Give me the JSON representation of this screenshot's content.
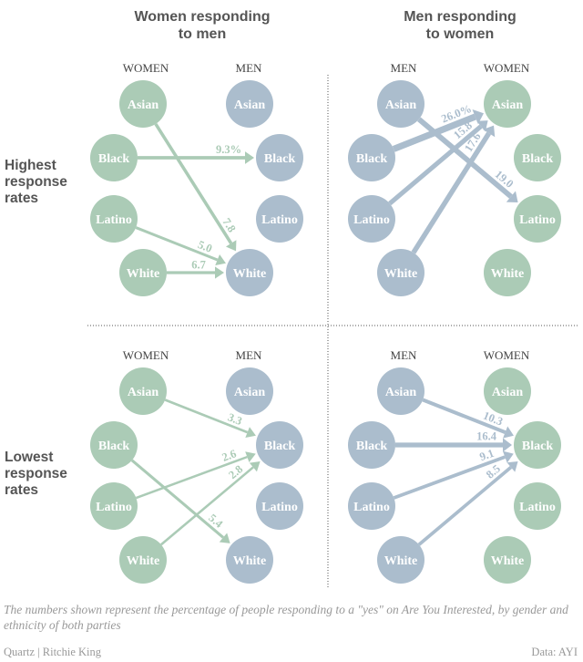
{
  "titles": {
    "left": [
      "Women responding",
      "to men"
    ],
    "right": [
      "Men responding",
      "to women"
    ]
  },
  "row_labels": {
    "top": [
      "Highest",
      "response",
      "rates"
    ],
    "bottom": [
      "Lowest",
      "response",
      "rates"
    ]
  },
  "colors": {
    "women": "#abcbb6",
    "men": "#abbdcd"
  },
  "ethnicities": [
    "Asian",
    "Black",
    "Latino",
    "White"
  ],
  "chart_data": [
    {
      "type": "diagram",
      "panel": "Women responding to men — highest",
      "from_label": "WOMEN",
      "to_label": "MEN",
      "from_group": "women",
      "edges": [
        {
          "from": "Asian",
          "to": "White",
          "value": "7.8"
        },
        {
          "from": "Black",
          "to": "Black",
          "value": "9.3%"
        },
        {
          "from": "Latino",
          "to": "White",
          "value": "5.0"
        },
        {
          "from": "White",
          "to": "White",
          "value": "6.7"
        }
      ]
    },
    {
      "type": "diagram",
      "panel": "Men responding to women — highest",
      "from_label": "MEN",
      "to_label": "WOMEN",
      "from_group": "men",
      "edges": [
        {
          "from": "Black",
          "to": "Asian",
          "value": "26.0%"
        },
        {
          "from": "Latino",
          "to": "Asian",
          "value": "15.8"
        },
        {
          "from": "White",
          "to": "Asian",
          "value": "17.6"
        },
        {
          "from": "Asian",
          "to": "Latino",
          "value": "19.0"
        }
      ]
    },
    {
      "type": "diagram",
      "panel": "Women responding to men — lowest",
      "from_label": "WOMEN",
      "to_label": "MEN",
      "from_group": "women",
      "edges": [
        {
          "from": "Asian",
          "to": "Black",
          "value": "3.3"
        },
        {
          "from": "Latino",
          "to": "Black",
          "value": "2.6"
        },
        {
          "from": "White",
          "to": "Black",
          "value": "2.8"
        },
        {
          "from": "Black",
          "to": "White",
          "value": "5.4"
        }
      ]
    },
    {
      "type": "diagram",
      "panel": "Men responding to women — lowest",
      "from_label": "MEN",
      "to_label": "WOMEN",
      "from_group": "men",
      "edges": [
        {
          "from": "Asian",
          "to": "Black",
          "value": "10.3"
        },
        {
          "from": "Black",
          "to": "Black",
          "value": "16.4"
        },
        {
          "from": "Latino",
          "to": "Black",
          "value": "9.1"
        },
        {
          "from": "White",
          "to": "Black",
          "value": "8.5"
        }
      ]
    }
  ],
  "footnote": "The numbers shown represent the percentage of people responding to a \"yes\" on Are You Interested, by gender and ethnicity of both parties",
  "credit": "Quartz | Ritchie King",
  "source": "Data: AYI"
}
